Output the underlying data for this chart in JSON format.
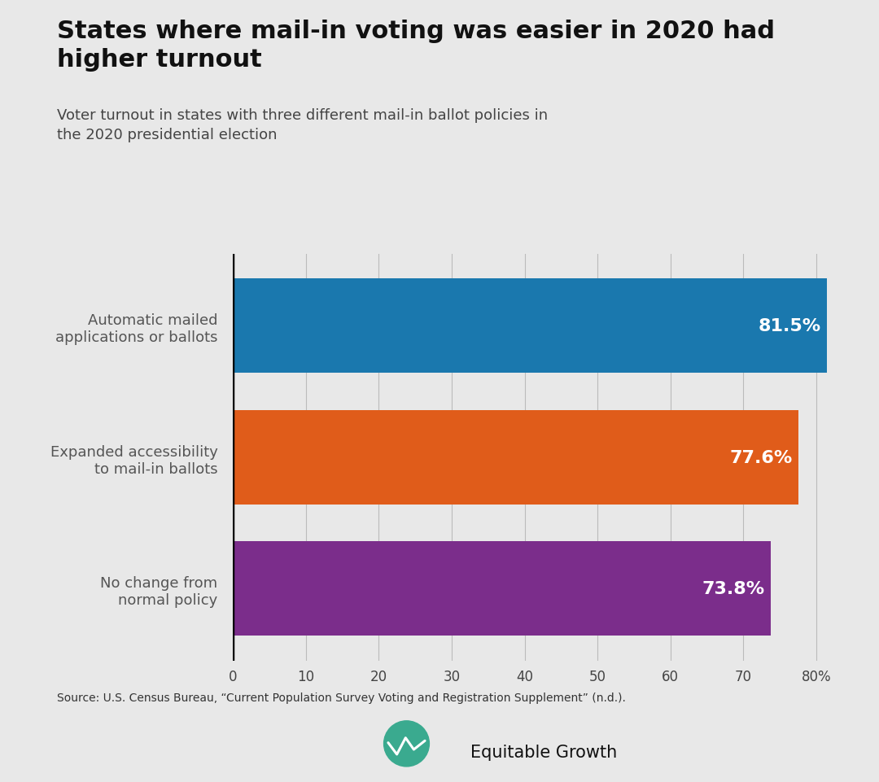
{
  "title": "States where mail-in voting was easier in 2020 had\nhigher turnout",
  "subtitle": "Voter turnout in states with three different mail-in ballot policies in\nthe 2020 presidential election",
  "categories": [
    "Automatic mailed\napplications or ballots",
    "Expanded accessibility\nto mail-in ballots",
    "No change from\nnormal policy"
  ],
  "values": [
    81.5,
    77.6,
    73.8
  ],
  "bar_colors": [
    "#1a78ae",
    "#e05c1a",
    "#7b2d8b"
  ],
  "value_labels": [
    "81.5%",
    "77.6%",
    "73.8%"
  ],
  "xlim": [
    0,
    85
  ],
  "xticks": [
    0,
    10,
    20,
    30,
    40,
    50,
    60,
    70,
    80
  ],
  "xtick_labels": [
    "0",
    "10",
    "20",
    "30",
    "40",
    "50",
    "60",
    "70",
    "80%"
  ],
  "background_color": "#e8e8e8",
  "source_text": "Source: U.S. Census Bureau, “Current Population Survey Voting and Registration Supplement” (n.d.).",
  "title_fontsize": 22,
  "subtitle_fontsize": 13,
  "label_fontsize": 13,
  "value_fontsize": 16,
  "bar_height": 0.72
}
